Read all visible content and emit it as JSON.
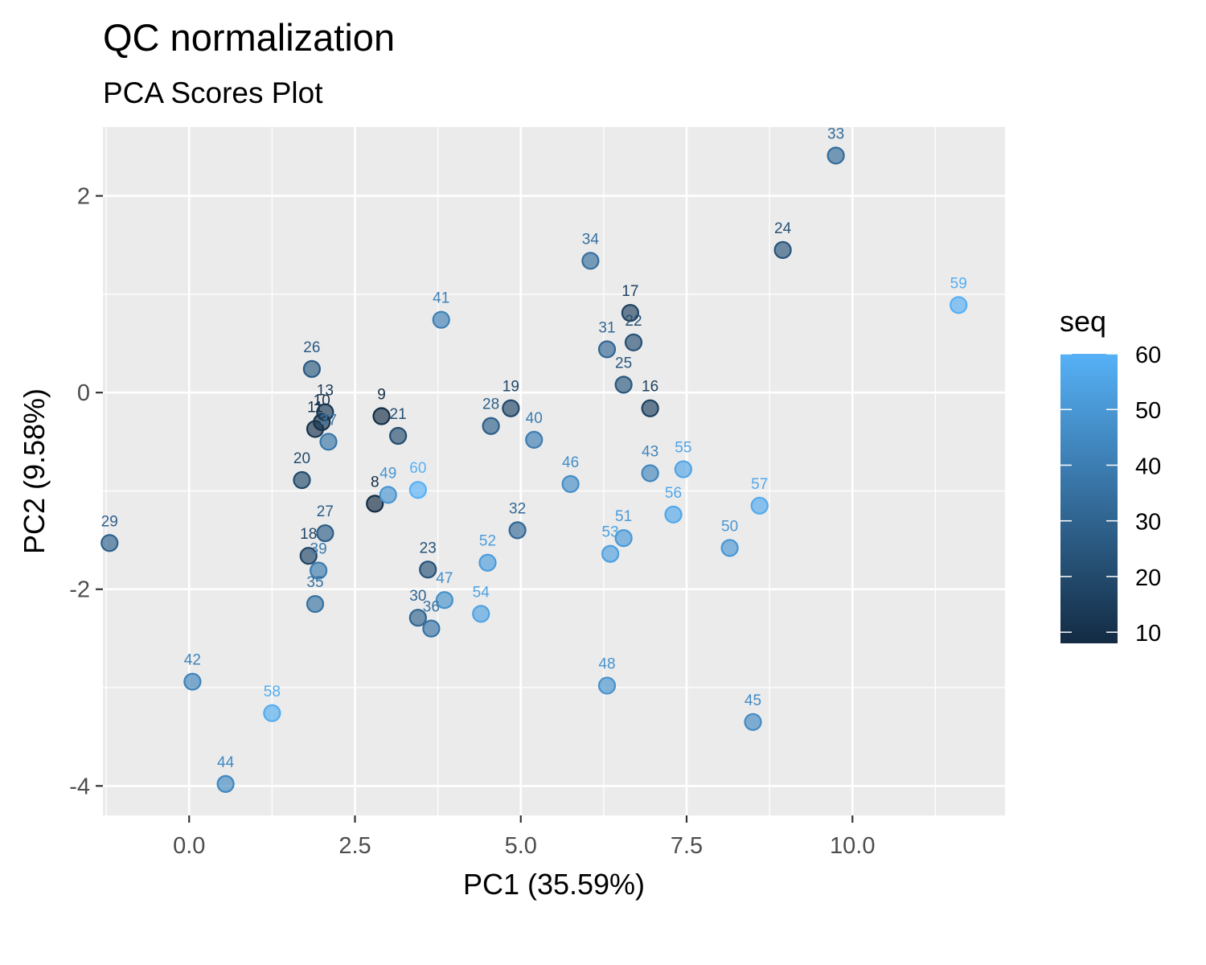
{
  "chart_data": {
    "type": "scatter",
    "title": "QC normalization",
    "subtitle": "PCA Scores Plot",
    "xlabel": "PC1 (35.59%)",
    "ylabel": "PC2 (9.58%)",
    "xlim": [
      -1.3,
      12.3
    ],
    "ylim": [
      -4.3,
      2.7
    ],
    "x_ticks": [
      0,
      2.5,
      5,
      7.5,
      10
    ],
    "x_tick_labels": [
      "0.0",
      "2.5",
      "5.0",
      "7.5",
      "10.0"
    ],
    "y_ticks": [
      -4,
      -2,
      0,
      2
    ],
    "y_tick_labels": [
      "-4",
      "-2",
      "0",
      "2"
    ],
    "grid": true,
    "legend": {
      "title": "seq",
      "position": "right",
      "type": "continuous-color",
      "range": [
        8,
        60
      ],
      "ticks": [
        10,
        20,
        30,
        40,
        50,
        60
      ],
      "tick_labels": [
        "10",
        "20",
        "30",
        "40",
        "50",
        "60"
      ],
      "color_low": "#132b43",
      "color_high": "#56b1f7"
    },
    "colors": {
      "panel_background": "#ebebeb",
      "grid": "#ffffff"
    },
    "points": [
      {
        "label": "8",
        "seq": 8,
        "x": 2.8,
        "y": -1.13
      },
      {
        "label": "9",
        "seq": 9,
        "x": 2.9,
        "y": -0.24
      },
      {
        "label": "10",
        "seq": 10,
        "x": 2.0,
        "y": -0.3
      },
      {
        "label": "11",
        "seq": 11,
        "x": 1.9,
        "y": -0.37
      },
      {
        "label": "13",
        "seq": 13,
        "x": 2.05,
        "y": -0.2
      },
      {
        "label": "16",
        "seq": 16,
        "x": 6.95,
        "y": -0.16
      },
      {
        "label": "17",
        "seq": 17,
        "x": 6.65,
        "y": 0.81
      },
      {
        "label": "18",
        "seq": 18,
        "x": 1.8,
        "y": -1.66
      },
      {
        "label": "19",
        "seq": 19,
        "x": 4.85,
        "y": -0.16
      },
      {
        "label": "20",
        "seq": 20,
        "x": 1.7,
        "y": -0.89
      },
      {
        "label": "21",
        "seq": 21,
        "x": 3.15,
        "y": -0.44
      },
      {
        "label": "22",
        "seq": 22,
        "x": 6.7,
        "y": 0.51
      },
      {
        "label": "23",
        "seq": 23,
        "x": 3.6,
        "y": -1.8
      },
      {
        "label": "24",
        "seq": 24,
        "x": 8.95,
        "y": 1.45
      },
      {
        "label": "25",
        "seq": 25,
        "x": 6.55,
        "y": 0.08
      },
      {
        "label": "26",
        "seq": 26,
        "x": 1.85,
        "y": 0.24
      },
      {
        "label": "27",
        "seq": 27,
        "x": 2.05,
        "y": -1.43
      },
      {
        "label": "28",
        "seq": 28,
        "x": 4.55,
        "y": -0.34
      },
      {
        "label": "29",
        "seq": 29,
        "x": -1.2,
        "y": -1.53
      },
      {
        "label": "30",
        "seq": 30,
        "x": 3.45,
        "y": -2.29
      },
      {
        "label": "31",
        "seq": 31,
        "x": 6.3,
        "y": 0.44
      },
      {
        "label": "32",
        "seq": 32,
        "x": 4.95,
        "y": -1.4
      },
      {
        "label": "33",
        "seq": 33,
        "x": 9.75,
        "y": 2.41
      },
      {
        "label": "34",
        "seq": 34,
        "x": 6.05,
        "y": 1.34
      },
      {
        "label": "35",
        "seq": 35,
        "x": 1.9,
        "y": -2.15
      },
      {
        "label": "36",
        "seq": 36,
        "x": 3.65,
        "y": -2.4
      },
      {
        "label": "37",
        "seq": 37,
        "x": 2.1,
        "y": -0.5
      },
      {
        "label": "39",
        "seq": 39,
        "x": 1.95,
        "y": -1.81
      },
      {
        "label": "40",
        "seq": 40,
        "x": 5.2,
        "y": -0.48
      },
      {
        "label": "41",
        "seq": 41,
        "x": 3.8,
        "y": 0.74
      },
      {
        "label": "42",
        "seq": 42,
        "x": 0.05,
        "y": -2.94
      },
      {
        "label": "43",
        "seq": 43,
        "x": 6.95,
        "y": -0.82
      },
      {
        "label": "44",
        "seq": 44,
        "x": 0.55,
        "y": -3.98
      },
      {
        "label": "45",
        "seq": 45,
        "x": 8.5,
        "y": -3.35
      },
      {
        "label": "46",
        "seq": 46,
        "x": 5.75,
        "y": -0.93
      },
      {
        "label": "47",
        "seq": 47,
        "x": 3.85,
        "y": -2.11
      },
      {
        "label": "48",
        "seq": 48,
        "x": 6.3,
        "y": -2.98
      },
      {
        "label": "49",
        "seq": 49,
        "x": 3.0,
        "y": -1.04
      },
      {
        "label": "50",
        "seq": 50,
        "x": 8.15,
        "y": -1.58
      },
      {
        "label": "51",
        "seq": 51,
        "x": 6.55,
        "y": -1.48
      },
      {
        "label": "52",
        "seq": 52,
        "x": 4.5,
        "y": -1.73
      },
      {
        "label": "53",
        "seq": 53,
        "x": 6.35,
        "y": -1.64
      },
      {
        "label": "54",
        "seq": 54,
        "x": 4.4,
        "y": -2.25
      },
      {
        "label": "55",
        "seq": 55,
        "x": 7.45,
        "y": -0.78
      },
      {
        "label": "56",
        "seq": 56,
        "x": 7.3,
        "y": -1.24
      },
      {
        "label": "57",
        "seq": 57,
        "x": 8.6,
        "y": -1.15
      },
      {
        "label": "58",
        "seq": 58,
        "x": 1.25,
        "y": -3.26
      },
      {
        "label": "59",
        "seq": 59,
        "x": 11.6,
        "y": 0.89
      },
      {
        "label": "60",
        "seq": 60,
        "x": 3.45,
        "y": -0.99
      }
    ]
  }
}
